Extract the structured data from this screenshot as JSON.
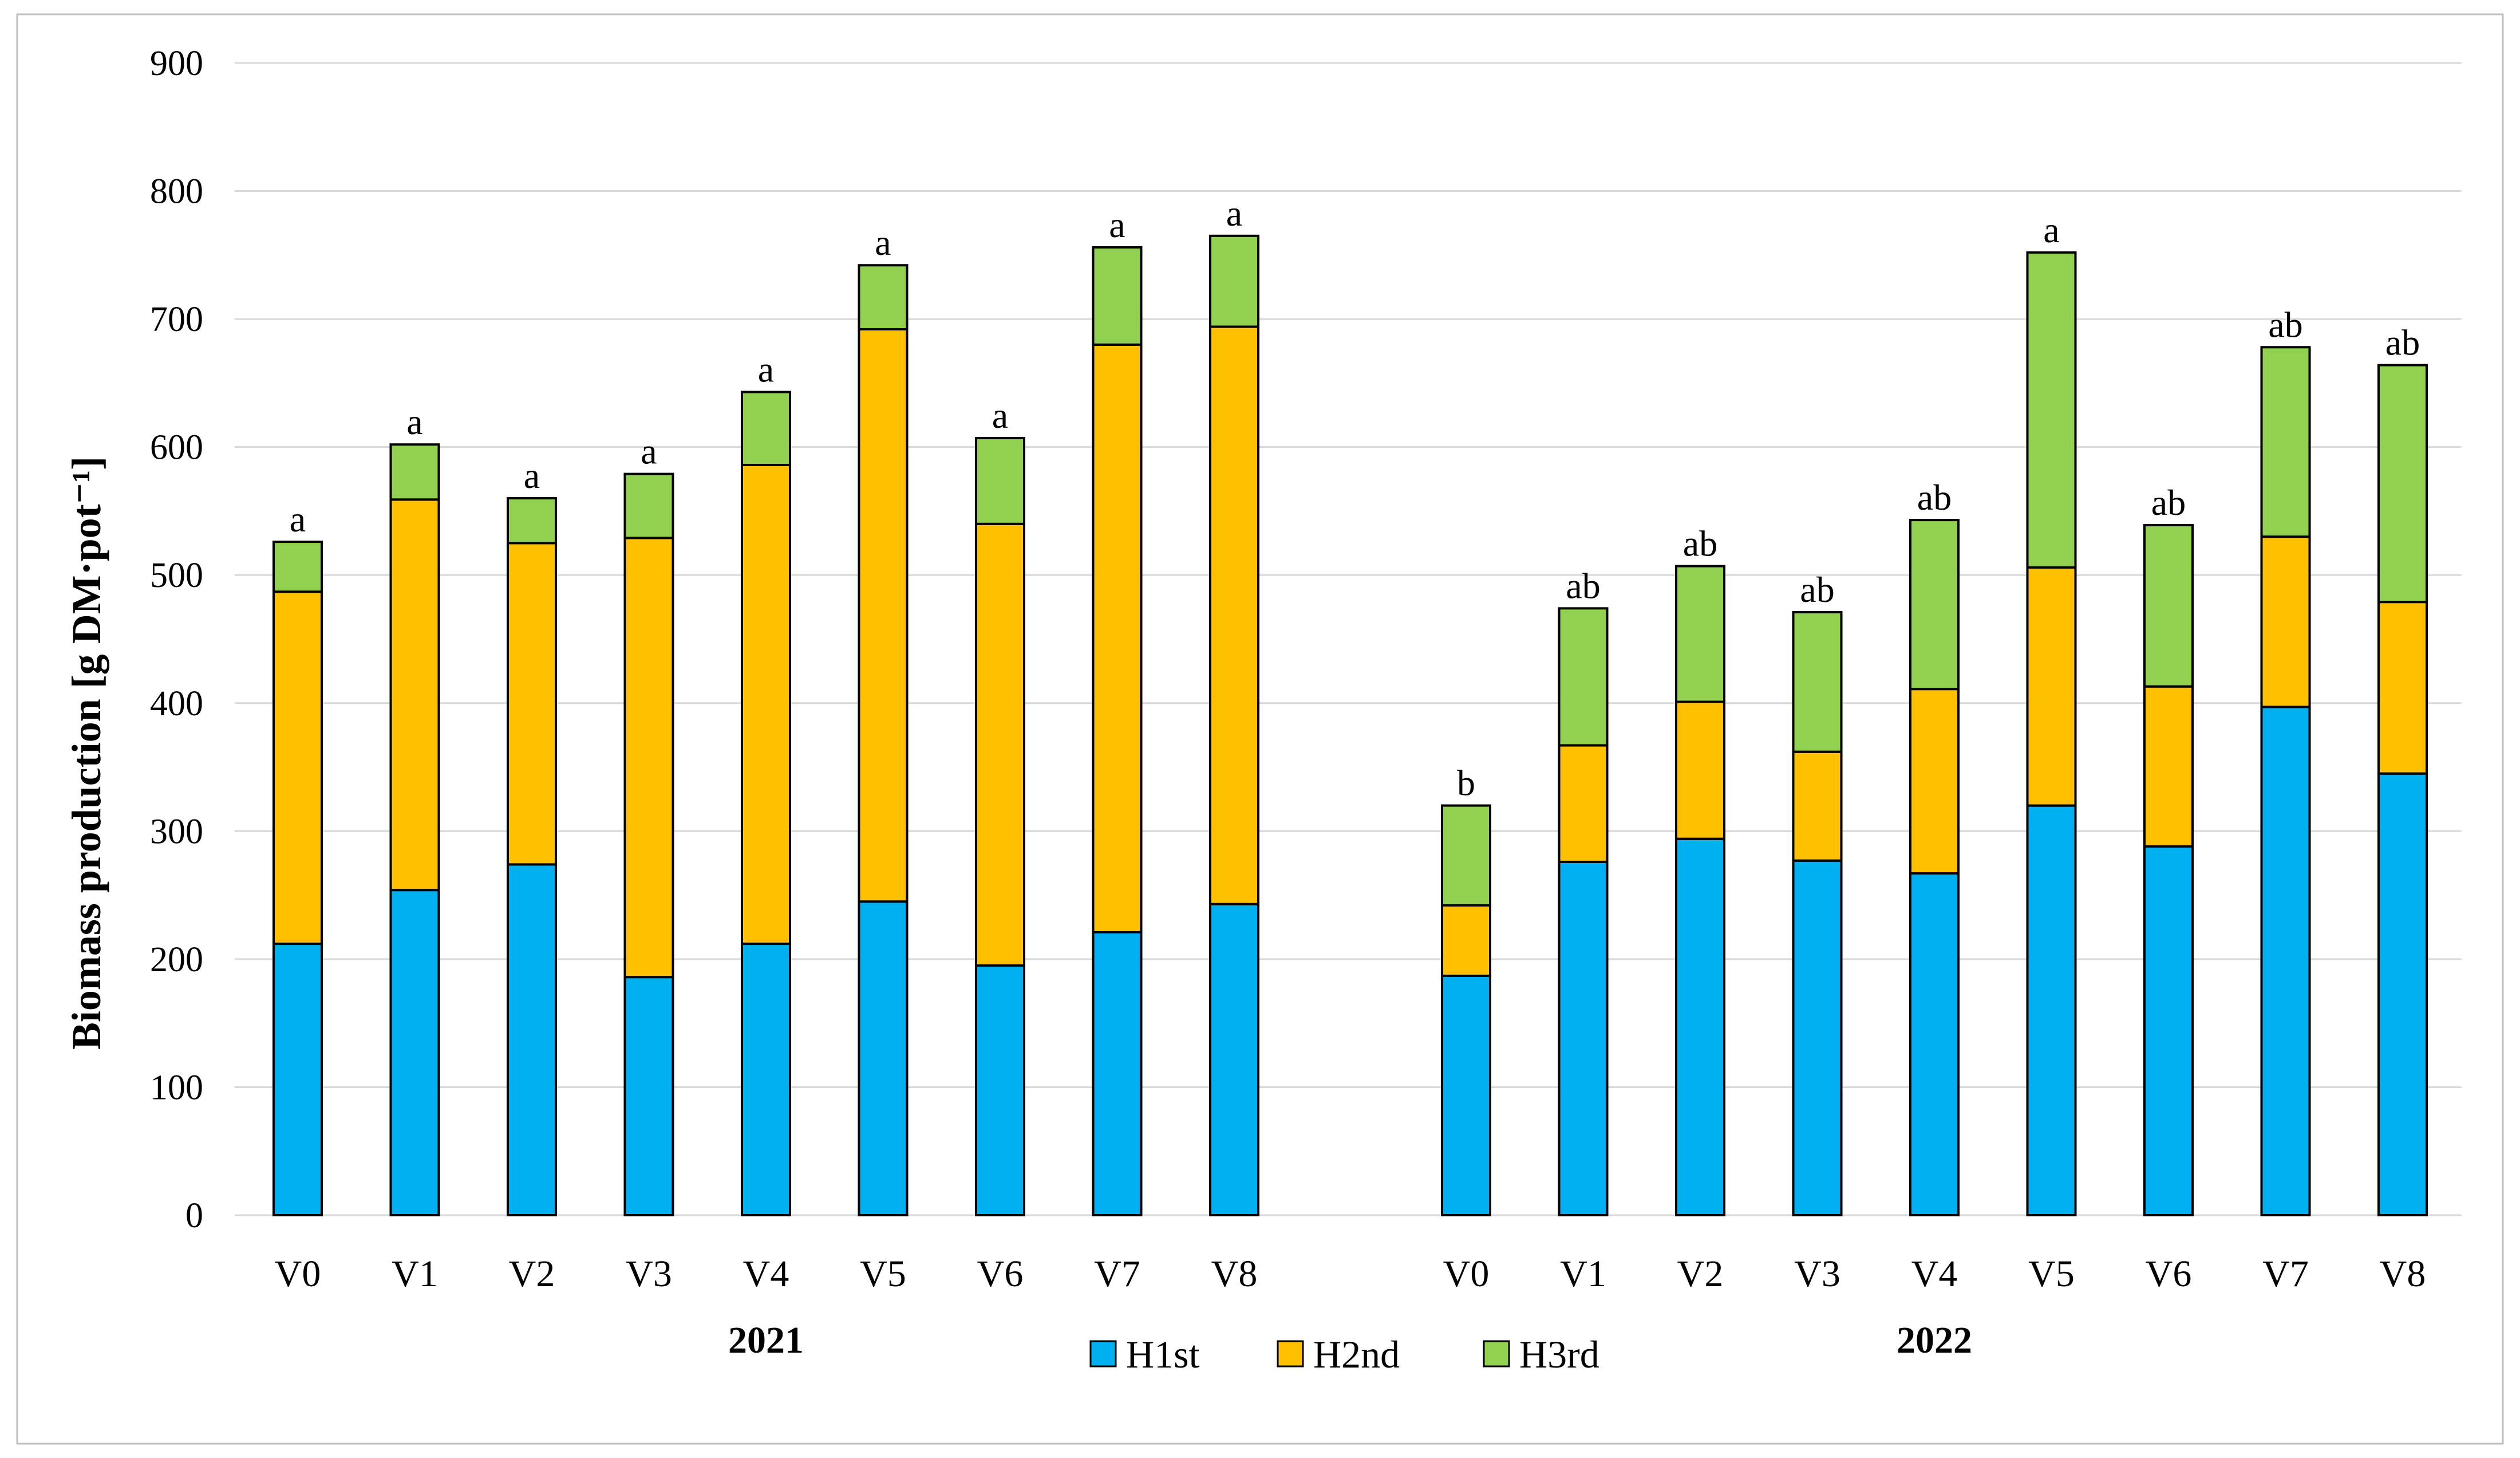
{
  "chart_data": {
    "type": "stacked-bar",
    "ylabel": "Biomass production [g DM·pot⁻¹]",
    "ylim": [
      0,
      900
    ],
    "yticks": [
      0,
      100,
      200,
      300,
      400,
      500,
      600,
      700,
      800,
      900
    ],
    "grid": true,
    "legend_position": "bottom-center",
    "series_meta": [
      {
        "key": "H1st",
        "name": "H1st",
        "color": "#00b0f0"
      },
      {
        "key": "H2nd",
        "name": "H2nd",
        "color": "#ffc000"
      },
      {
        "key": "H3rd",
        "name": "H3rd",
        "color": "#92d050"
      }
    ],
    "groups": [
      {
        "label": "2021",
        "categories": [
          "V0",
          "V1",
          "V2",
          "V3",
          "V4",
          "V5",
          "V6",
          "V7",
          "V8"
        ],
        "H1st": [
          212,
          254,
          274,
          186,
          212,
          245,
          195,
          221,
          243
        ],
        "H2nd": [
          275,
          305,
          251,
          343,
          374,
          447,
          345,
          459,
          451
        ],
        "H3rd": [
          39,
          43,
          35,
          50,
          57,
          50,
          67,
          76,
          71
        ],
        "letters": [
          "a",
          "a",
          "a",
          "a",
          "a",
          "a",
          "a",
          "a",
          "a"
        ]
      },
      {
        "label": "2022",
        "categories": [
          "V0",
          "V1",
          "V2",
          "V3",
          "V4",
          "V5",
          "V6",
          "V7",
          "V8"
        ],
        "H1st": [
          187,
          276,
          294,
          277,
          267,
          320,
          288,
          397,
          345
        ],
        "H2nd": [
          55,
          91,
          107,
          85,
          144,
          186,
          125,
          133,
          134
        ],
        "H3rd": [
          78,
          107,
          106,
          109,
          132,
          246,
          126,
          148,
          185
        ],
        "letters": [
          "b",
          "ab",
          "ab",
          "ab",
          "ab",
          "a",
          "ab",
          "ab",
          "ab"
        ]
      }
    ]
  }
}
